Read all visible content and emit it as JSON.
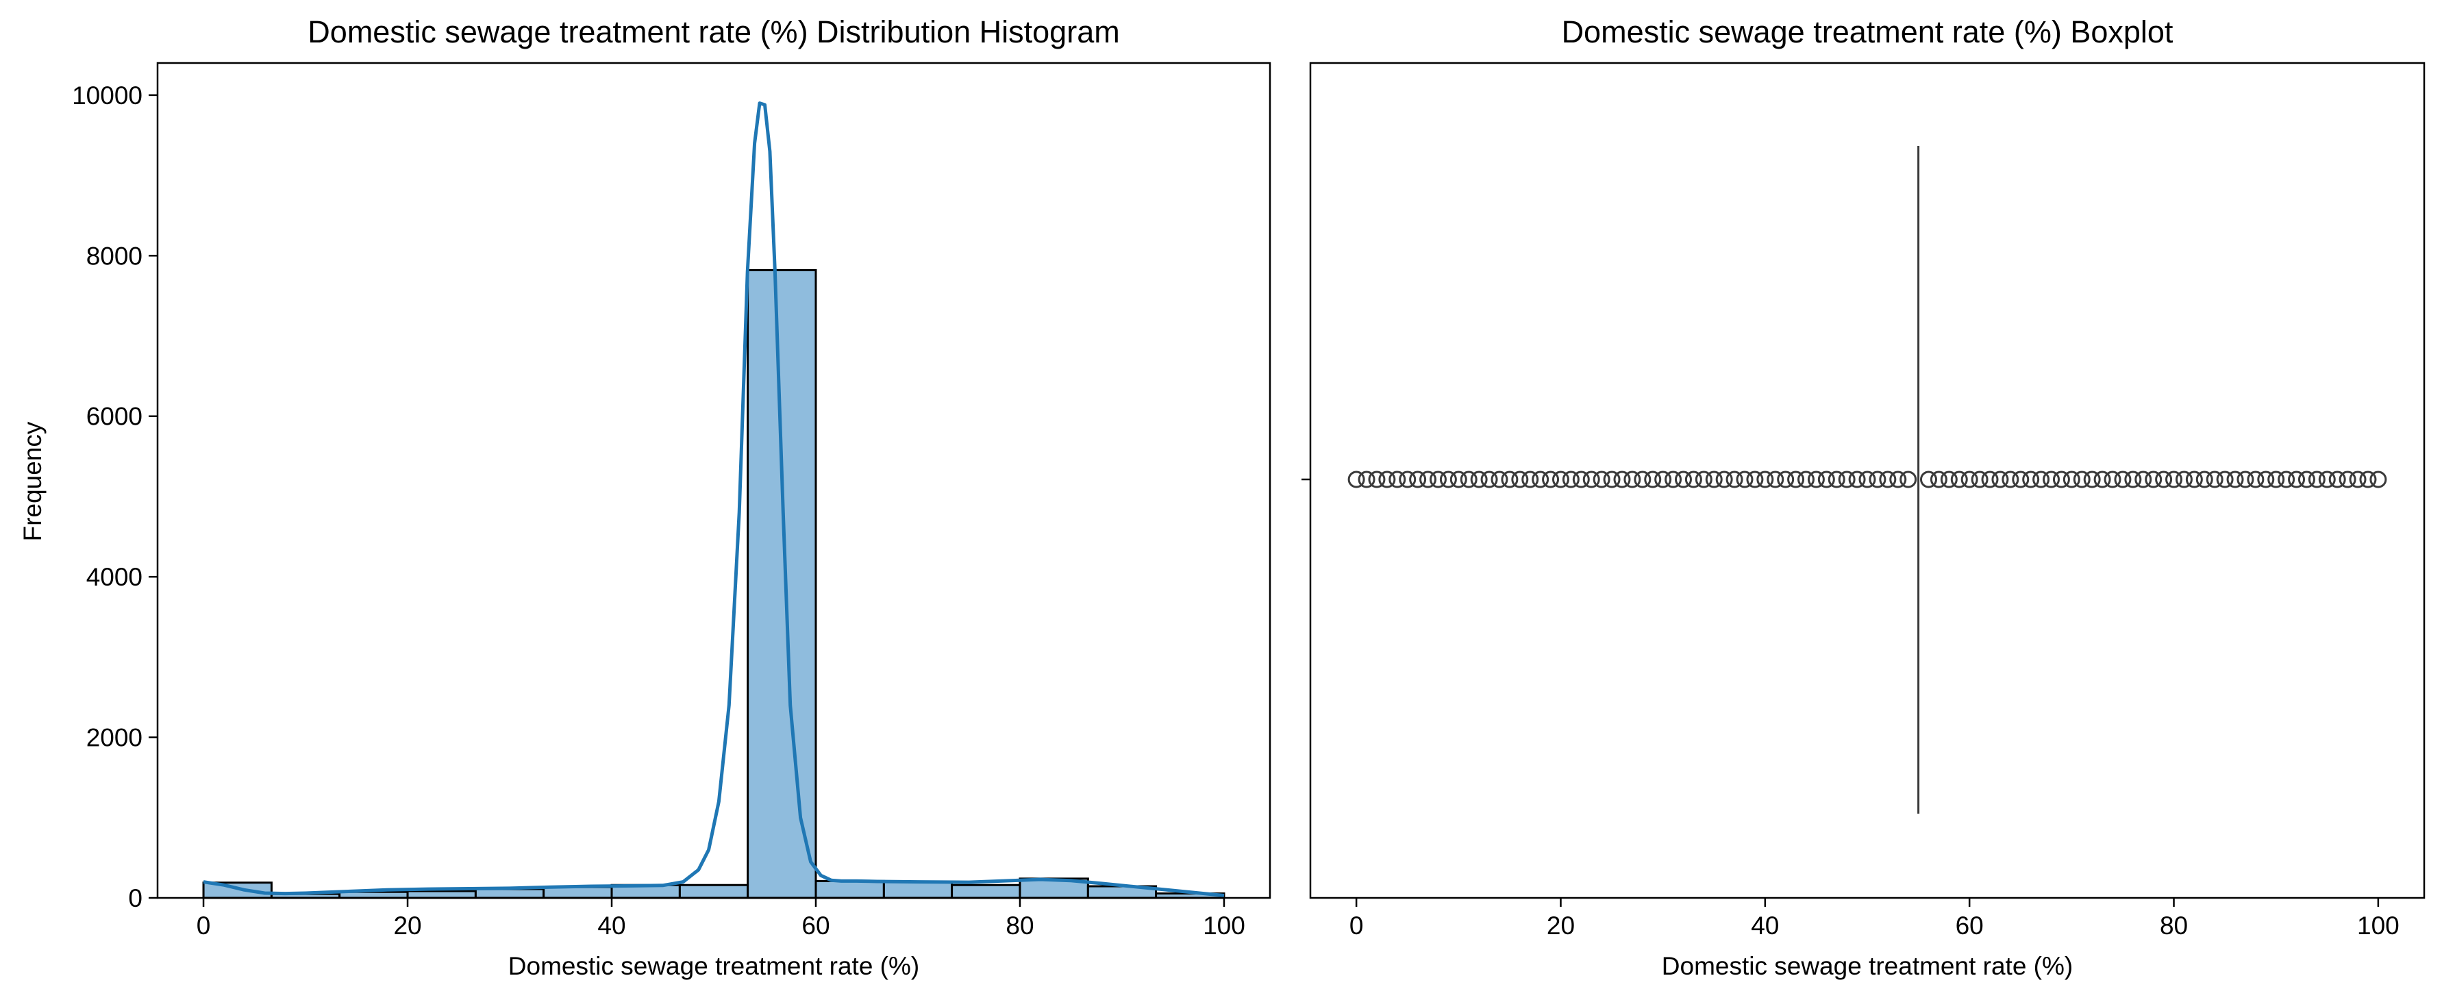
{
  "colors": {
    "bar_fill": "#8fbcdd",
    "bar_edge": "#000000",
    "kde_line": "#1f77b4",
    "box_line": "#3a3a3a",
    "axes_frame": "#000000"
  },
  "chart_data": [
    {
      "type": "bar",
      "subtype": "histogram-with-kde",
      "title": "Domestic sewage treatment rate (%) Distribution Histogram",
      "xlabel": "Domestic sewage treatment rate (%)",
      "ylabel": "Frequency",
      "xlim": [
        -4.5,
        104.5
      ],
      "ylim": [
        0,
        10400
      ],
      "xticks": [
        0,
        20,
        40,
        60,
        80,
        100
      ],
      "yticks": [
        0,
        2000,
        4000,
        6000,
        8000,
        10000
      ],
      "grid": false,
      "legend": "none",
      "bins": [
        {
          "x0": 0.0,
          "x1": 6.67,
          "value": 190
        },
        {
          "x0": 6.67,
          "x1": 13.33,
          "value": 50
        },
        {
          "x0": 13.33,
          "x1": 20.0,
          "value": 75
        },
        {
          "x0": 20.0,
          "x1": 26.67,
          "value": 85
        },
        {
          "x0": 26.67,
          "x1": 33.33,
          "value": 110
        },
        {
          "x0": 33.33,
          "x1": 40.0,
          "value": 135
        },
        {
          "x0": 40.0,
          "x1": 46.67,
          "value": 160
        },
        {
          "x0": 46.67,
          "x1": 53.33,
          "value": 160
        },
        {
          "x0": 53.33,
          "x1": 60.0,
          "value": 7820
        },
        {
          "x0": 60.0,
          "x1": 66.67,
          "value": 210
        },
        {
          "x0": 66.67,
          "x1": 73.33,
          "value": 200
        },
        {
          "x0": 73.33,
          "x1": 80.0,
          "value": 160
        },
        {
          "x0": 80.0,
          "x1": 86.67,
          "value": 240
        },
        {
          "x0": 86.67,
          "x1": 93.33,
          "value": 145
        },
        {
          "x0": 93.33,
          "x1": 100.0,
          "value": 55
        }
      ],
      "kde": {
        "x": [
          0,
          2,
          4,
          6,
          8,
          10,
          14,
          18,
          22,
          26,
          30,
          34,
          38,
          42,
          45,
          47,
          48.5,
          49.5,
          50.5,
          51.5,
          52.5,
          53.3,
          54,
          54.5,
          55,
          55.5,
          56,
          56.8,
          57.5,
          58.5,
          59.5,
          60.5,
          61.5,
          62.5,
          64,
          66,
          70,
          75,
          80,
          82,
          85,
          88,
          92,
          96,
          100
        ],
        "y": [
          200,
          160,
          100,
          60,
          55,
          60,
          80,
          100,
          110,
          115,
          120,
          135,
          145,
          150,
          155,
          200,
          350,
          600,
          1200,
          2400,
          4800,
          7800,
          9400,
          9900,
          9880,
          9300,
          7800,
          4800,
          2400,
          1000,
          450,
          280,
          220,
          210,
          210,
          205,
          200,
          195,
          220,
          230,
          215,
          180,
          130,
          80,
          30
        ]
      }
    },
    {
      "type": "box",
      "title": "Domestic sewage treatment rate (%) Boxplot",
      "xlabel": "Domestic sewage treatment rate (%)",
      "xlim": [
        -4.5,
        104.5
      ],
      "xticks": [
        0,
        20,
        40,
        60,
        80,
        100
      ],
      "grid": false,
      "legend": "none",
      "median": 55,
      "q1": 55,
      "q3": 55,
      "whisker_low": 55,
      "whisker_high": 55,
      "fliers": [
        0,
        1,
        2,
        3,
        4,
        5,
        6,
        7,
        8,
        9,
        10,
        11,
        12,
        13,
        14,
        15,
        16,
        17,
        18,
        19,
        20,
        21,
        22,
        23,
        24,
        25,
        26,
        27,
        28,
        29,
        30,
        31,
        32,
        33,
        34,
        35,
        36,
        37,
        38,
        39,
        40,
        41,
        42,
        43,
        44,
        45,
        46,
        47,
        48,
        49,
        50,
        51,
        52,
        53,
        54,
        56,
        57,
        58,
        59,
        60,
        61,
        62,
        63,
        64,
        65,
        66,
        67,
        68,
        69,
        70,
        71,
        72,
        73,
        74,
        75,
        76,
        77,
        78,
        79,
        80,
        81,
        82,
        83,
        84,
        85,
        86,
        87,
        88,
        89,
        90,
        91,
        92,
        93,
        94,
        95,
        96,
        97,
        98,
        99,
        100
      ]
    }
  ]
}
